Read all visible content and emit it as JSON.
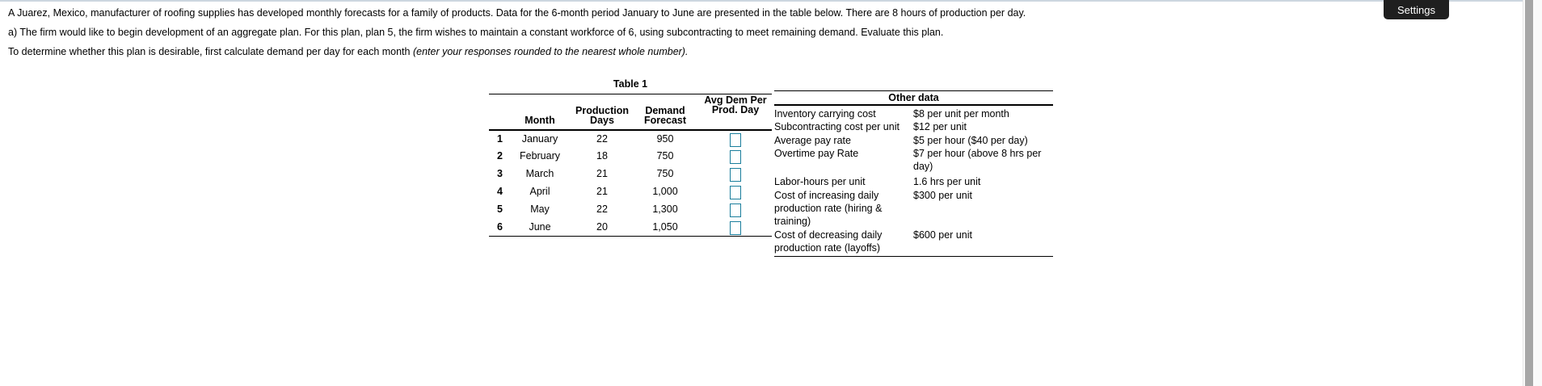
{
  "page": {
    "paragraph1": "A Juarez, Mexico, manufacturer of roofing supplies has developed monthly forecasts for a family of products. Data for the 6-month period January to June are presented in the table below. There are 8 hours of production per day.",
    "paragraph2": "a) The firm would like to begin development of an aggregate plan. For this plan, plan 5, the firm wishes to maintain a constant workforce of 6, using subcontracting to meet remaining demand. Evaluate this plan.",
    "paragraph3_main": "To determine whether this plan is desirable, first calculate demand per day for each month ",
    "paragraph3_italic": "(enter your responses rounded to the nearest whole number)."
  },
  "toolbar": {
    "settings_label": "Settings"
  },
  "table1": {
    "caption": "Table 1",
    "headers": {
      "month": "Month",
      "production_days": "Production\nDays",
      "demand_forecast": "Demand\nForecast",
      "avg_dem_per_prod_day": "Avg Dem Per\nProd. Day"
    },
    "rows": [
      {
        "num": "1",
        "month": "January",
        "days": "22",
        "forecast": "950",
        "avg_input_value": ""
      },
      {
        "num": "2",
        "month": "February",
        "days": "18",
        "forecast": "750",
        "avg_input_value": ""
      },
      {
        "num": "3",
        "month": "March",
        "days": "21",
        "forecast": "750",
        "avg_input_value": ""
      },
      {
        "num": "4",
        "month": "April",
        "days": "21",
        "forecast": "1,000",
        "avg_input_value": ""
      },
      {
        "num": "5",
        "month": "May",
        "days": "22",
        "forecast": "1,300",
        "avg_input_value": ""
      },
      {
        "num": "6",
        "month": "June",
        "days": "20",
        "forecast": "1,050",
        "avg_input_value": ""
      }
    ]
  },
  "other_data": {
    "title": "Other data",
    "rows": [
      {
        "label": "Inventory carrying cost",
        "value": "$8 per unit per month"
      },
      {
        "label": "Subcontracting cost per unit",
        "value": "$12 per unit"
      },
      {
        "label": "Average pay rate",
        "value": "$5 per hour ($40 per day)"
      },
      {
        "label": "Overtime pay Rate",
        "value": "$7 per hour (above 8 hrs per day)"
      },
      {
        "label": "Labor-hours per unit",
        "value": "1.6 hrs per unit"
      },
      {
        "label": "Cost of increasing daily production rate (hiring & training)",
        "value": "$300 per unit"
      },
      {
        "label": "Cost of decreasing daily production rate (layoffs)",
        "value": "$600 per unit"
      }
    ]
  },
  "colors": {
    "answer_input_border": "#1A7E9C",
    "settings_button_bg": "#1F1F1F",
    "top_edge_line": "#CCD6E0",
    "scrollbar_thumb": "#A6A6A6",
    "table_rule": "#000000"
  }
}
